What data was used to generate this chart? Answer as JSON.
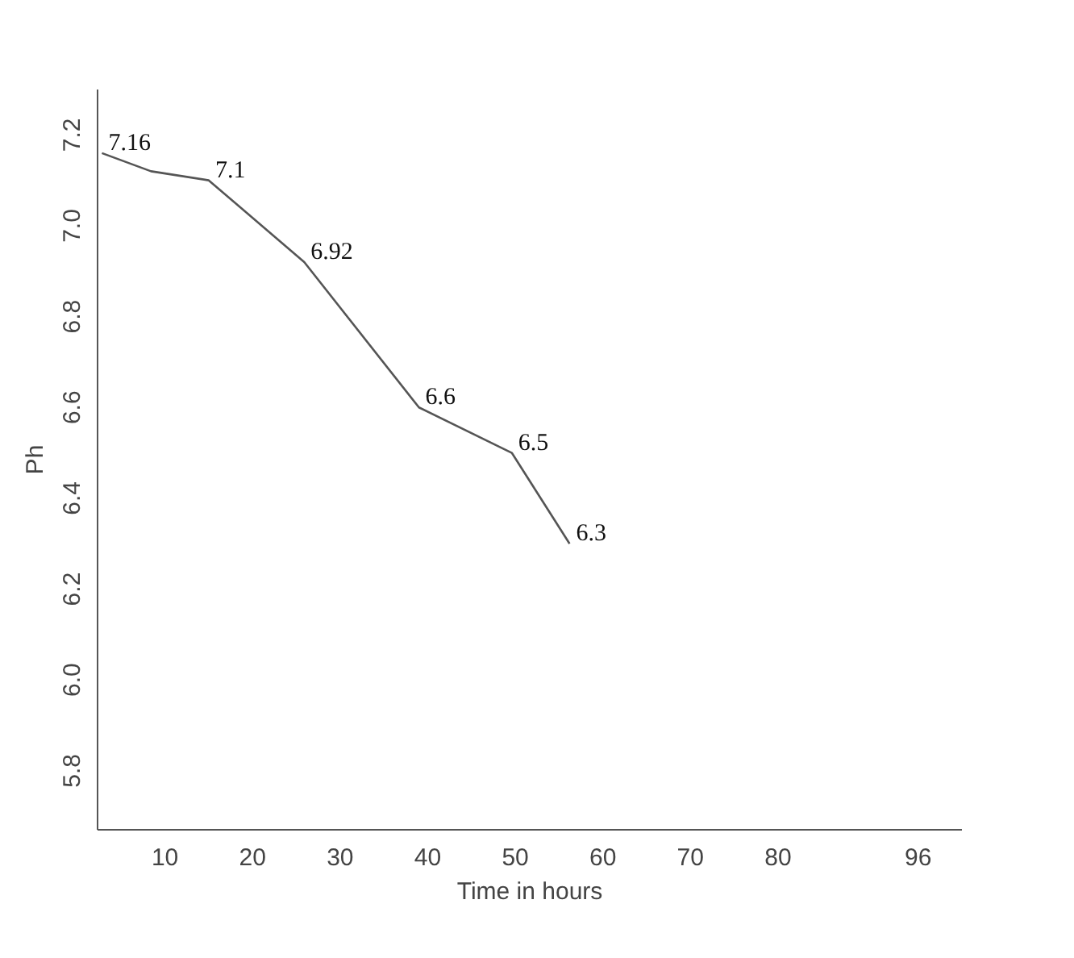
{
  "chart_data": {
    "type": "line",
    "xlabel": "Time in hours",
    "ylabel": "Ph",
    "x": [
      2.8,
      8.4,
      15,
      25.9,
      39,
      49.6,
      56.2
    ],
    "series": [
      {
        "color": "#555555",
        "values": [
          7.16,
          7.12,
          7.1,
          6.92,
          6.6,
          6.5,
          6.3
        ],
        "value_labels": [
          "7.16",
          null,
          "7.1",
          "6.92",
          "6.6",
          "6.5",
          "6.3"
        ]
      }
    ],
    "xlim": [
      2.3,
      101
    ],
    "ylim": [
      5.67,
      7.3
    ],
    "xticks": [
      10,
      20,
      30,
      40,
      50,
      60,
      70,
      80,
      96
    ],
    "yticks": [
      {
        "value": 5.8,
        "label": "5.8"
      },
      {
        "value": 6.0,
        "label": "6.0"
      },
      {
        "value": 6.2,
        "label": "6.2"
      },
      {
        "value": 6.4,
        "label": "6.4"
      },
      {
        "value": 6.6,
        "label": "6.6"
      },
      {
        "value": 6.8,
        "label": "6.8"
      },
      {
        "value": 7.0,
        "label": "7.0"
      },
      {
        "value": 7.2,
        "label": "7.2"
      }
    ],
    "grid": false,
    "marker": "none",
    "line_style": "solid"
  }
}
